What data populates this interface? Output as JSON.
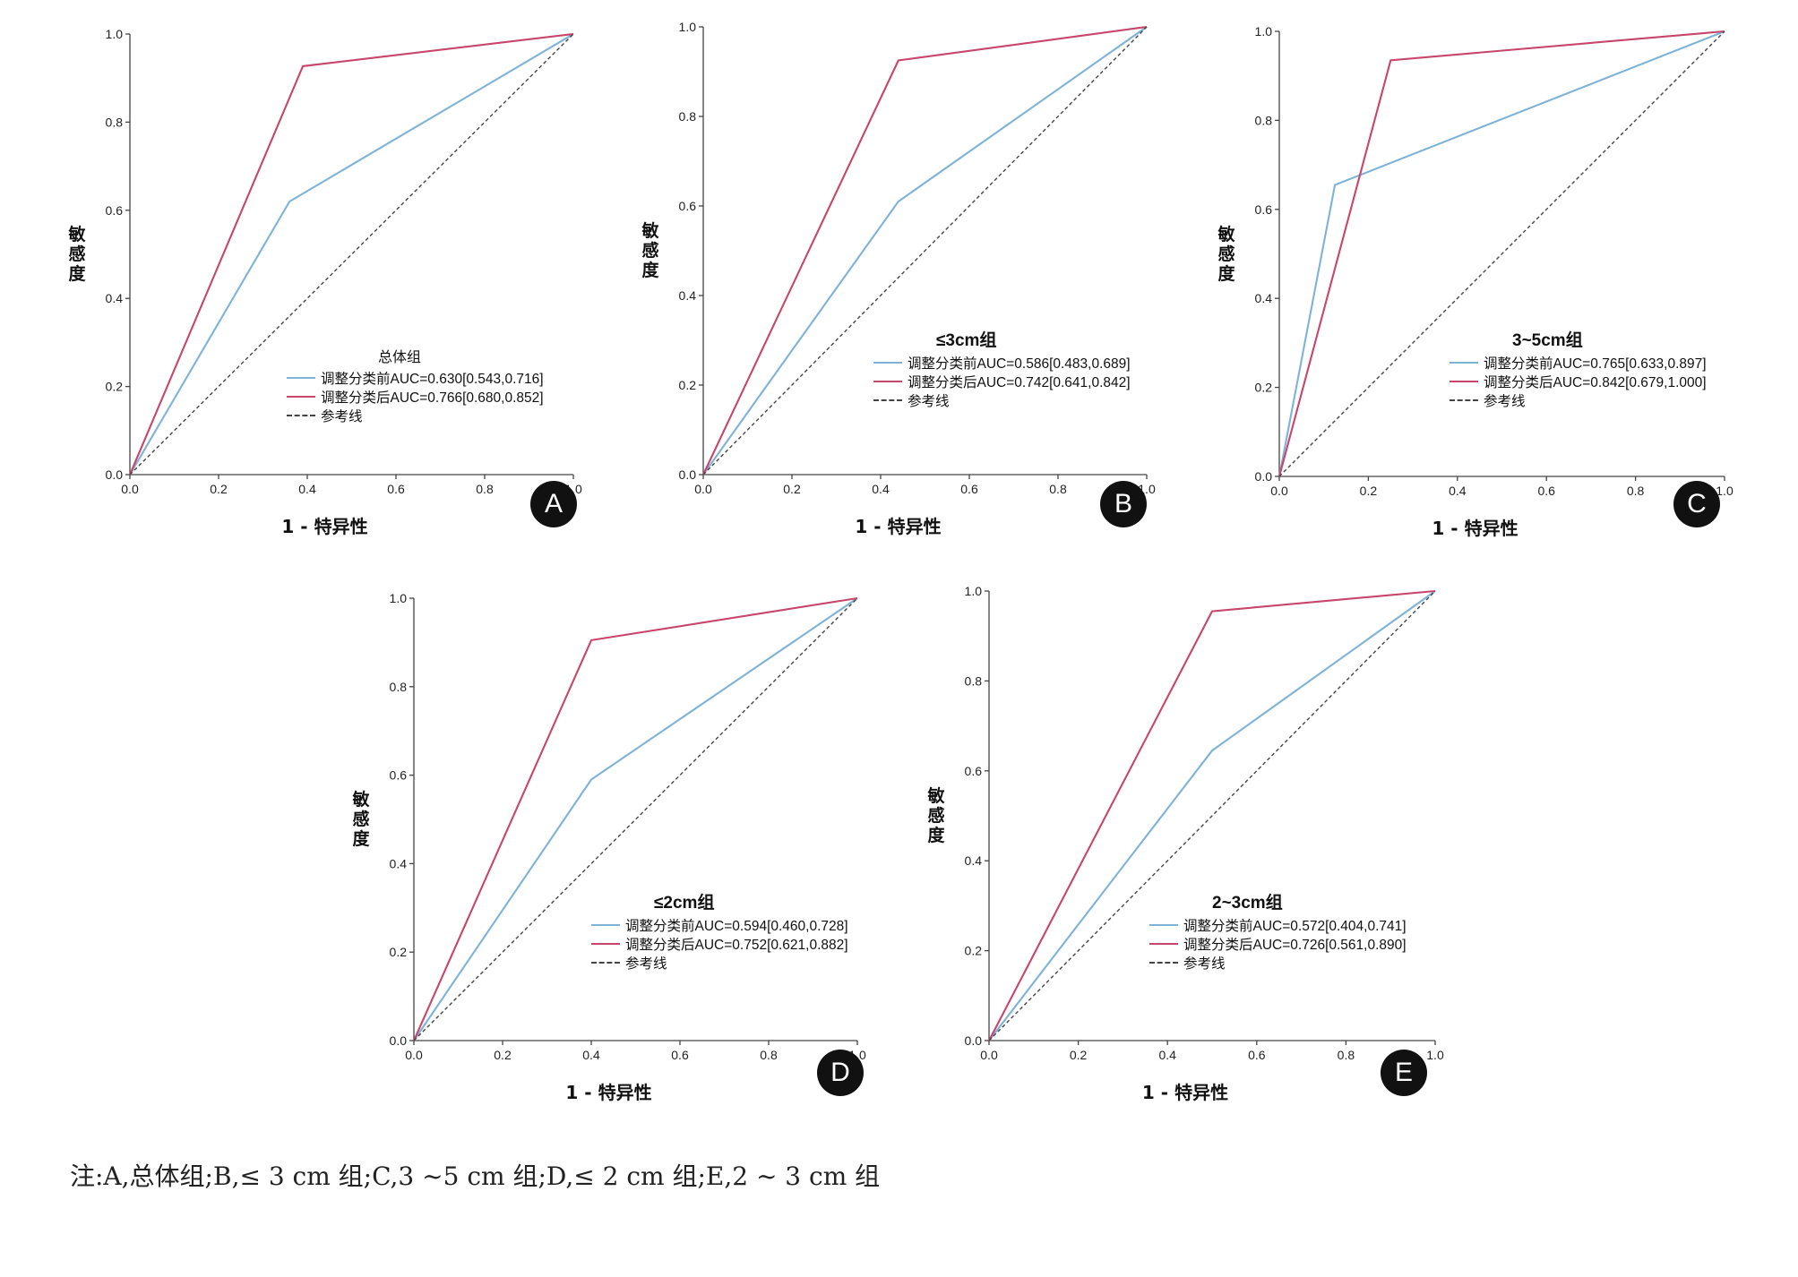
{
  "colors": {
    "before": "#7eb3d8",
    "after": "#c8456b",
    "reference": "#444444"
  },
  "note": "注:A,总体组;B,≤ 3 cm 组;C,3 ~5 cm 组;D,≤ 2 cm 组;E,2 ~ 3 cm 组",
  "chart_data": [
    {
      "type": "line",
      "panel": "A",
      "title": "总体组",
      "xlabel": "1 - 特异性",
      "ylabel": "敏感度",
      "xlim": [
        0,
        1
      ],
      "ylim": [
        0,
        1
      ],
      "xticks": [
        "0.0",
        "0.2",
        "0.4",
        "0.6",
        "0.8",
        "1.0"
      ],
      "yticks": [
        "0.0",
        "0.2",
        "0.4",
        "0.6",
        "0.8",
        "1.0"
      ],
      "series": [
        {
          "name": "调整分类前AUC=0.630[0.543,0.716]",
          "style": "before",
          "x": [
            0,
            0.36,
            1
          ],
          "y": [
            0,
            0.62,
            1
          ]
        },
        {
          "name": "调整分类后AUC=0.766[0.680,0.852]",
          "style": "after",
          "x": [
            0,
            0.39,
            1
          ],
          "y": [
            0,
            0.927,
            1
          ]
        },
        {
          "name": "参考线",
          "style": "reference",
          "x": [
            0,
            1
          ],
          "y": [
            0,
            1
          ]
        }
      ]
    },
    {
      "type": "line",
      "panel": "B",
      "title": "≤3cm组",
      "xlabel": "1 - 特异性",
      "ylabel": "敏感度",
      "xlim": [
        0,
        1
      ],
      "ylim": [
        0,
        1
      ],
      "xticks": [
        "0.0",
        "0.2",
        "0.4",
        "0.6",
        "0.8",
        "1.0"
      ],
      "yticks": [
        "0.0",
        "0.2",
        "0.4",
        "0.6",
        "0.8",
        "1.0"
      ],
      "series": [
        {
          "name": "调整分类前AUC=0.586[0.483,0.689]",
          "style": "before",
          "x": [
            0,
            0.44,
            1
          ],
          "y": [
            0,
            0.61,
            1
          ]
        },
        {
          "name": "调整分类后AUC=0.742[0.641,0.842]",
          "style": "after",
          "x": [
            0,
            0.44,
            1
          ],
          "y": [
            0,
            0.925,
            1
          ]
        },
        {
          "name": "参考线",
          "style": "reference",
          "x": [
            0,
            1
          ],
          "y": [
            0,
            1
          ]
        }
      ]
    },
    {
      "type": "line",
      "panel": "C",
      "title": "3~5cm组",
      "xlabel": "1 - 特异性",
      "ylabel": "敏感度",
      "xlim": [
        0,
        1
      ],
      "ylim": [
        0,
        1
      ],
      "xticks": [
        "0.0",
        "0.2",
        "0.4",
        "0.6",
        "0.8",
        "1.0"
      ],
      "yticks": [
        "0.0",
        "0.2",
        "0.4",
        "0.6",
        "0.8",
        "1.0"
      ],
      "series": [
        {
          "name": "调整分类前AUC=0.765[0.633,0.897]",
          "style": "before",
          "x": [
            0,
            0.125,
            1
          ],
          "y": [
            0,
            0.655,
            1
          ]
        },
        {
          "name": "调整分类后AUC=0.842[0.679,1.000]",
          "style": "after",
          "x": [
            0,
            0.25,
            1
          ],
          "y": [
            0,
            0.935,
            1
          ]
        },
        {
          "name": "参考线",
          "style": "reference",
          "x": [
            0,
            1
          ],
          "y": [
            0,
            1
          ]
        }
      ]
    },
    {
      "type": "line",
      "panel": "D",
      "title": "≤2cm组",
      "xlabel": "1 - 特异性",
      "ylabel": "敏感度",
      "xlim": [
        0,
        1
      ],
      "ylim": [
        0,
        1
      ],
      "xticks": [
        "0.0",
        "0.2",
        "0.4",
        "0.6",
        "0.8",
        "1.0"
      ],
      "yticks": [
        "0.0",
        "0.2",
        "0.4",
        "0.6",
        "0.8",
        "1.0"
      ],
      "series": [
        {
          "name": "调整分类前AUC=0.594[0.460,0.728]",
          "style": "before",
          "x": [
            0,
            0.4,
            1
          ],
          "y": [
            0,
            0.59,
            1
          ]
        },
        {
          "name": "调整分类后AUC=0.752[0.621,0.882]",
          "style": "after",
          "x": [
            0,
            0.4,
            1
          ],
          "y": [
            0,
            0.905,
            1
          ]
        },
        {
          "name": "参考线",
          "style": "reference",
          "x": [
            0,
            1
          ],
          "y": [
            0,
            1
          ]
        }
      ]
    },
    {
      "type": "line",
      "panel": "E",
      "title": "2~3cm组",
      "xlabel": "1 - 特异性",
      "ylabel": "敏感度",
      "xlim": [
        0,
        1
      ],
      "ylim": [
        0,
        1
      ],
      "xticks": [
        "0.0",
        "0.2",
        "0.4",
        "0.6",
        "0.8",
        "1.0"
      ],
      "yticks": [
        "0.0",
        "0.2",
        "0.4",
        "0.6",
        "0.8",
        "1.0"
      ],
      "series": [
        {
          "name": "调整分类前AUC=0.572[0.404,0.741]",
          "style": "before",
          "x": [
            0,
            0.5,
            1
          ],
          "y": [
            0,
            0.645,
            1
          ]
        },
        {
          "name": "调整分类后AUC=0.726[0.561,0.890]",
          "style": "after",
          "x": [
            0,
            0.5,
            1
          ],
          "y": [
            0,
            0.955,
            1
          ]
        },
        {
          "name": "参考线",
          "style": "reference",
          "x": [
            0,
            1
          ],
          "y": [
            0,
            1
          ]
        }
      ]
    }
  ]
}
